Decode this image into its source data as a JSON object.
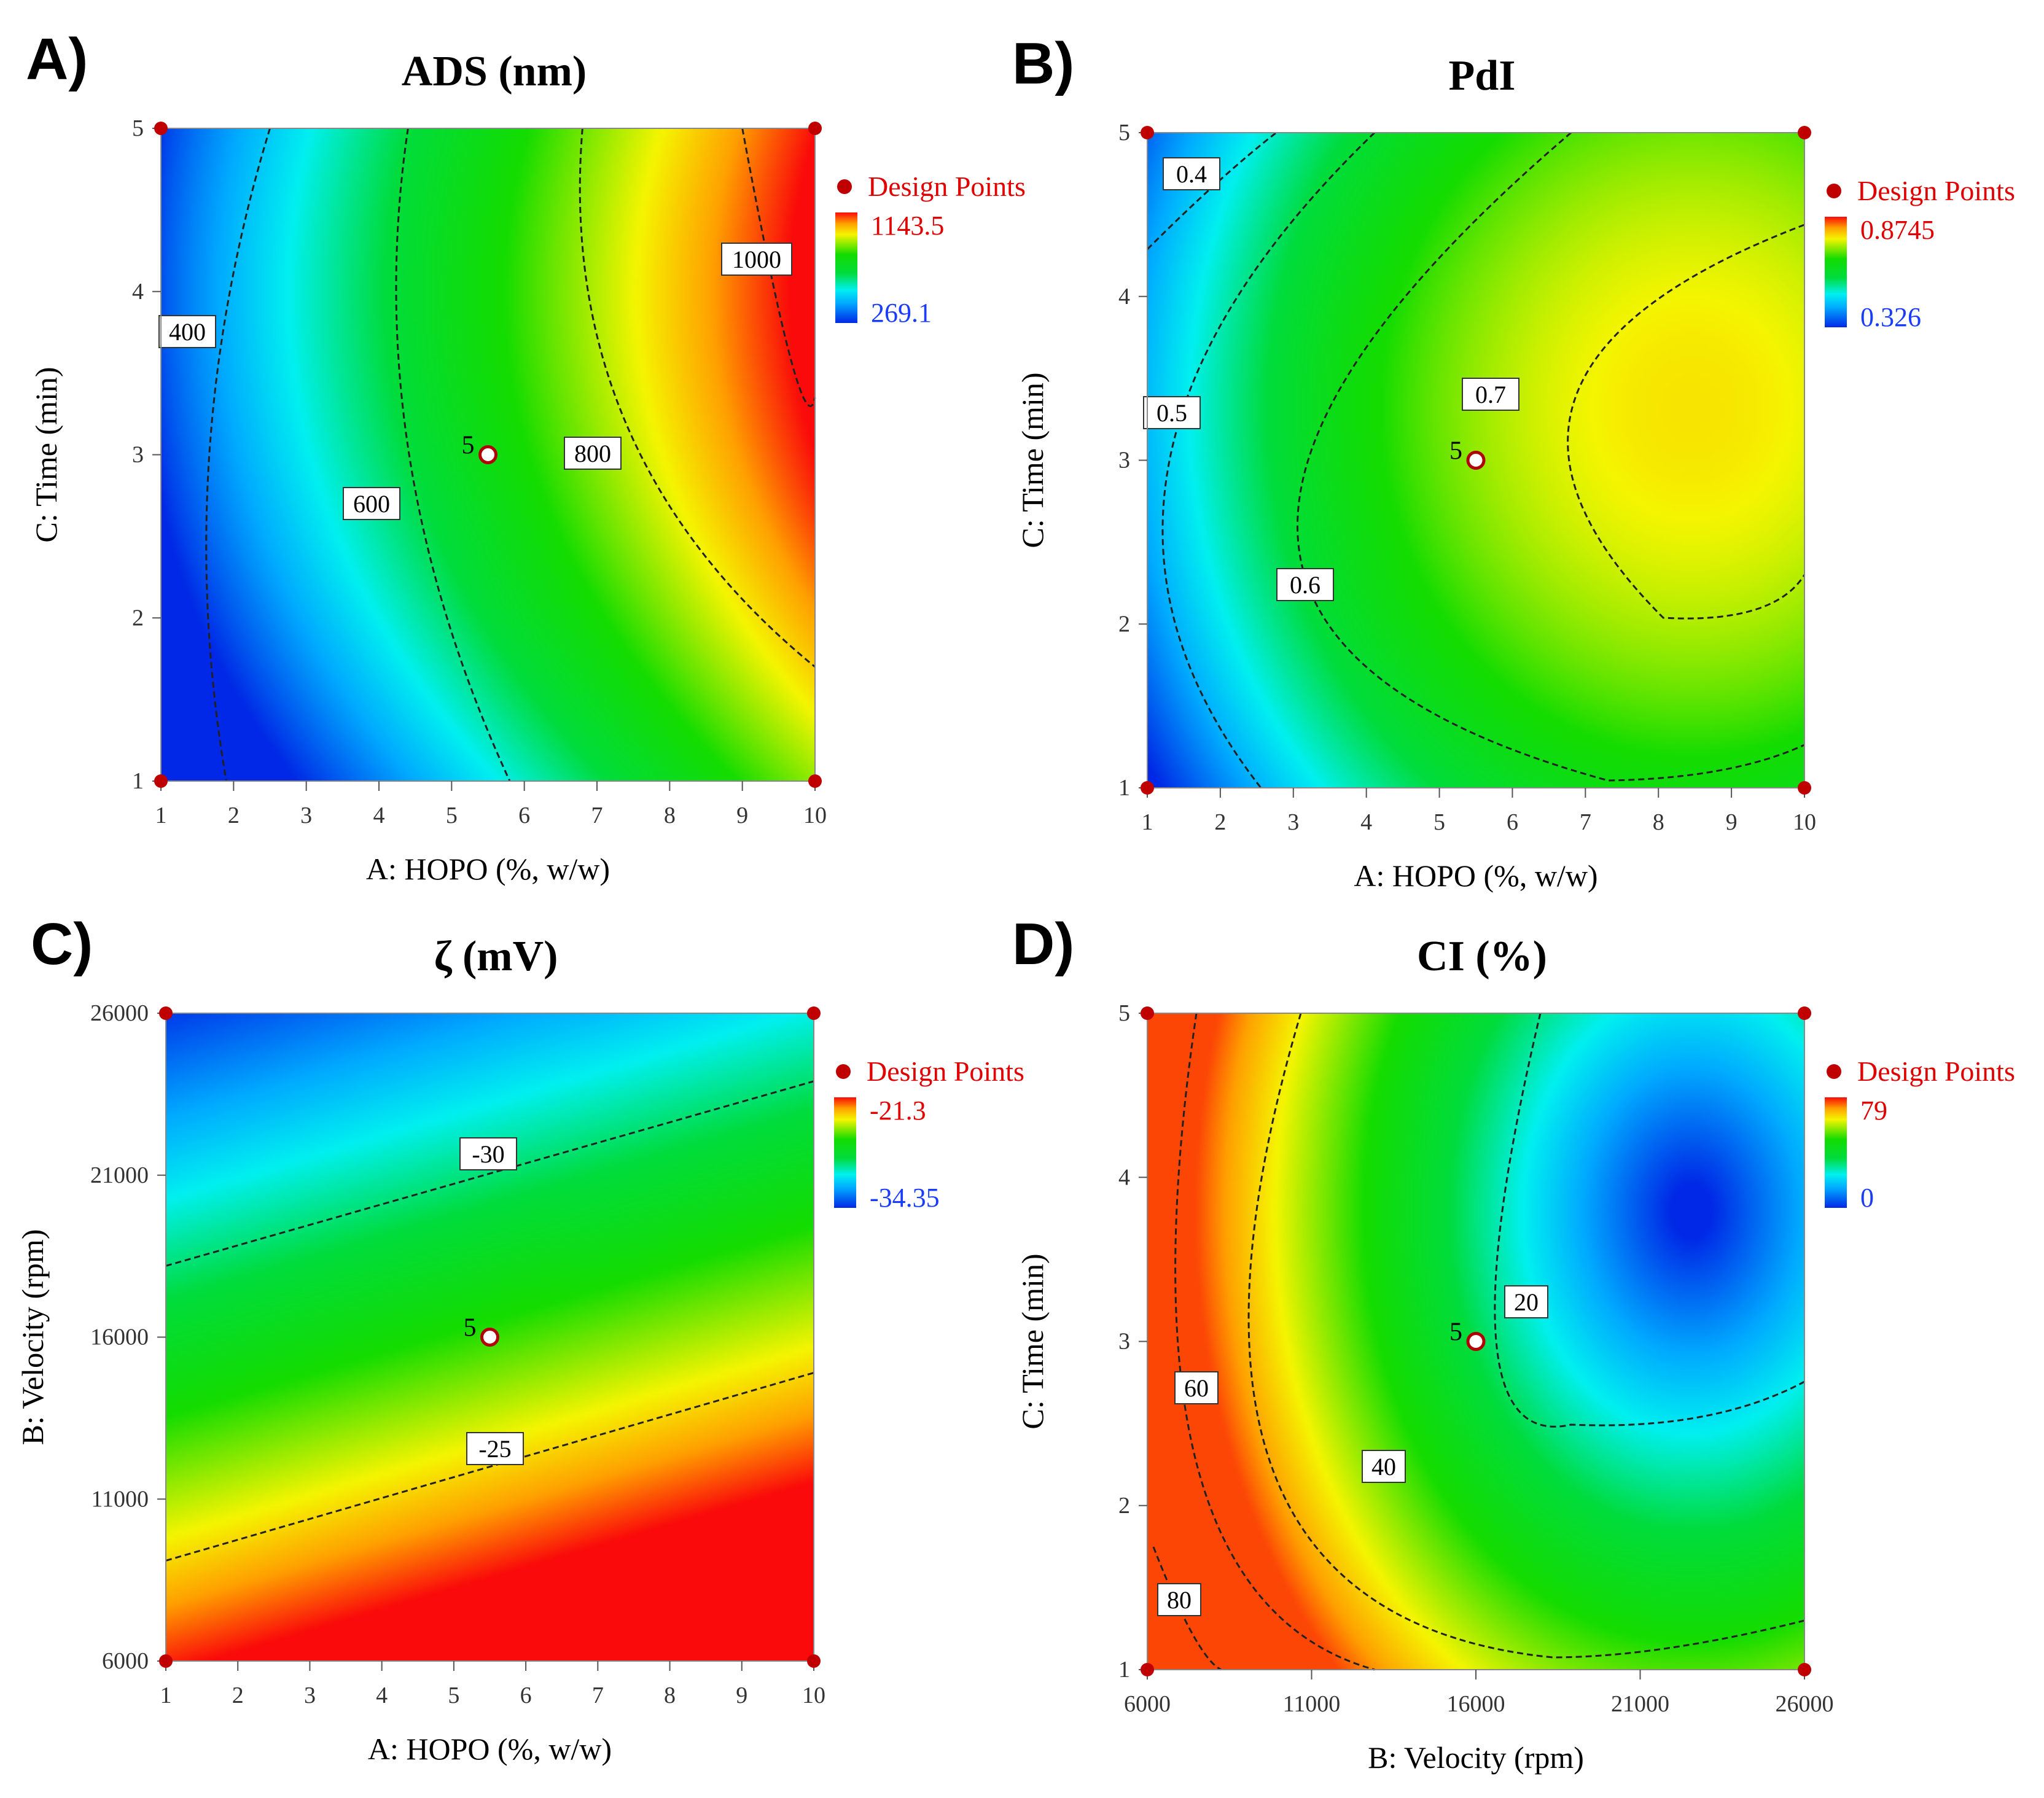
{
  "chart_data": [
    {
      "type": "heatmap",
      "panel_letter": "A)",
      "title": "ADS (nm)",
      "xlabel": "A: HOPO (%, w/w)",
      "ylabel": "C: Time (min)",
      "x_ticks": [
        1,
        2,
        3,
        4,
        5,
        6,
        7,
        8,
        9,
        10
      ],
      "y_ticks": [
        1,
        2,
        3,
        4,
        5
      ],
      "xlim": [
        1,
        10
      ],
      "ylim": [
        1,
        5
      ],
      "grid": false,
      "legend": {
        "position": "right",
        "design_points_label": "Design Points",
        "max_label": "1143.5",
        "min_label": "269.1",
        "max_value": 1143.5,
        "min_value": 269.1
      },
      "contours": [
        {
          "label": "400",
          "value": 400,
          "x_at_y5": 2.5,
          "x_at_y3": 1.3,
          "x_at_y1": 1.9
        },
        {
          "label": "600",
          "value": 600,
          "x_at_y5": 4.4,
          "x_at_y3": 3.9,
          "x_at_y1": 5.8
        },
        {
          "label": "800",
          "value": 800,
          "x_at_y5": 6.8,
          "x_at_y3": 6.6,
          "x_at_y1": 10.0,
          "y_at_x10": 1.7
        },
        {
          "label": "1000",
          "value": 1000,
          "x_at_y5": 9.0,
          "x_at_y3": 10.0,
          "y_at_x10": 3.35
        }
      ],
      "design_points": [
        {
          "x": 1,
          "y": 5,
          "label": ""
        },
        {
          "x": 10,
          "y": 5,
          "label": ""
        },
        {
          "x": 1,
          "y": 1,
          "label": ""
        },
        {
          "x": 10,
          "y": 1,
          "label": ""
        },
        {
          "x": 5.5,
          "y": 3,
          "label": "5",
          "center": true
        }
      ],
      "surface": {
        "model": "quadratic",
        "center": [
          10,
          4.5
        ],
        "value_at_center": 1143.5,
        "value_min": 269.1
      }
    },
    {
      "type": "heatmap",
      "panel_letter": "B)",
      "title": "PdI",
      "xlabel": "A: HOPO (%, w/w)",
      "ylabel": "C: Time (min)",
      "x_ticks": [
        1,
        2,
        3,
        4,
        5,
        6,
        7,
        8,
        9,
        10
      ],
      "y_ticks": [
        1,
        2,
        3,
        4,
        5
      ],
      "xlim": [
        1,
        10
      ],
      "ylim": [
        1,
        5
      ],
      "grid": false,
      "legend": {
        "position": "right",
        "design_points_label": "Design Points",
        "max_label": "0.8745",
        "min_label": "0.326",
        "max_value": 0.8745,
        "min_value": 0.326
      },
      "contours": [
        {
          "label": "0.4",
          "value": 0.4
        },
        {
          "label": "0.5",
          "value": 0.5
        },
        {
          "label": "0.6",
          "value": 0.6
        },
        {
          "label": "0.7",
          "value": 0.7
        }
      ],
      "design_points": [
        {
          "x": 1,
          "y": 5,
          "label": ""
        },
        {
          "x": 10,
          "y": 5,
          "label": ""
        },
        {
          "x": 1,
          "y": 1,
          "label": ""
        },
        {
          "x": 10,
          "y": 1,
          "label": ""
        },
        {
          "x": 5.5,
          "y": 3,
          "label": "5",
          "center": true
        }
      ],
      "surface": {
        "model": "elliptic",
        "center": [
          8.5,
          3.3
        ],
        "value_at_center": 0.78
      }
    },
    {
      "type": "heatmap",
      "panel_letter": "C)",
      "title": "ζ (mV)",
      "xlabel": "A: HOPO (%, w/w)",
      "ylabel": "B: Velocity (rpm)",
      "x_ticks": [
        1,
        2,
        3,
        4,
        5,
        6,
        7,
        8,
        9,
        10
      ],
      "y_ticks": [
        6000,
        11000,
        16000,
        21000,
        26000
      ],
      "xlim": [
        1,
        10
      ],
      "ylim": [
        6000,
        26000
      ],
      "grid": false,
      "legend": {
        "position": "right",
        "design_points_label": "Design Points",
        "max_label": "-21.3",
        "min_label": "-34.35",
        "max_value": -21.3,
        "min_value": -34.35
      },
      "contours": [
        {
          "label": "-30",
          "value": -30,
          "y_at_x1": 18200,
          "y_at_x10": 23900
        },
        {
          "label": "-25",
          "value": -25,
          "y_at_x1": 9100,
          "y_at_x10": 14900
        }
      ],
      "design_points": [
        {
          "x": 1,
          "y": 26000,
          "label": ""
        },
        {
          "x": 10,
          "y": 26000,
          "label": ""
        },
        {
          "x": 1,
          "y": 6000,
          "label": ""
        },
        {
          "x": 10,
          "y": 6000,
          "label": ""
        },
        {
          "x": 5.5,
          "y": 16000,
          "label": "5",
          "center": true
        }
      ],
      "surface": {
        "model": "planar"
      }
    },
    {
      "type": "heatmap",
      "panel_letter": "D)",
      "title": "CI (%)",
      "xlabel": "B: Velocity (rpm)",
      "ylabel": "C: Time (min)",
      "x_ticks": [
        6000,
        11000,
        16000,
        21000,
        26000
      ],
      "y_ticks": [
        1,
        2,
        3,
        4,
        5
      ],
      "xlim": [
        6000,
        26000
      ],
      "ylim": [
        1,
        5
      ],
      "grid": false,
      "legend": {
        "position": "right",
        "design_points_label": "Design Points",
        "max_label": "79",
        "min_label": "0",
        "max_value": 79,
        "min_value": 0
      },
      "contours": [
        {
          "label": "20",
          "value": 20
        },
        {
          "label": "40",
          "value": 40
        },
        {
          "label": "60",
          "value": 60
        },
        {
          "label": "80",
          "value": 80
        }
      ],
      "design_points": [
        {
          "x": 6000,
          "y": 5,
          "label": ""
        },
        {
          "x": 26000,
          "y": 5,
          "label": ""
        },
        {
          "x": 6000,
          "y": 1,
          "label": ""
        },
        {
          "x": 26000,
          "y": 1,
          "label": ""
        },
        {
          "x": 16000,
          "y": 3,
          "label": "5",
          "center": true
        }
      ],
      "surface": {
        "model": "radial",
        "center": [
          22500,
          3.8
        ],
        "value_at_center": 0
      }
    }
  ]
}
